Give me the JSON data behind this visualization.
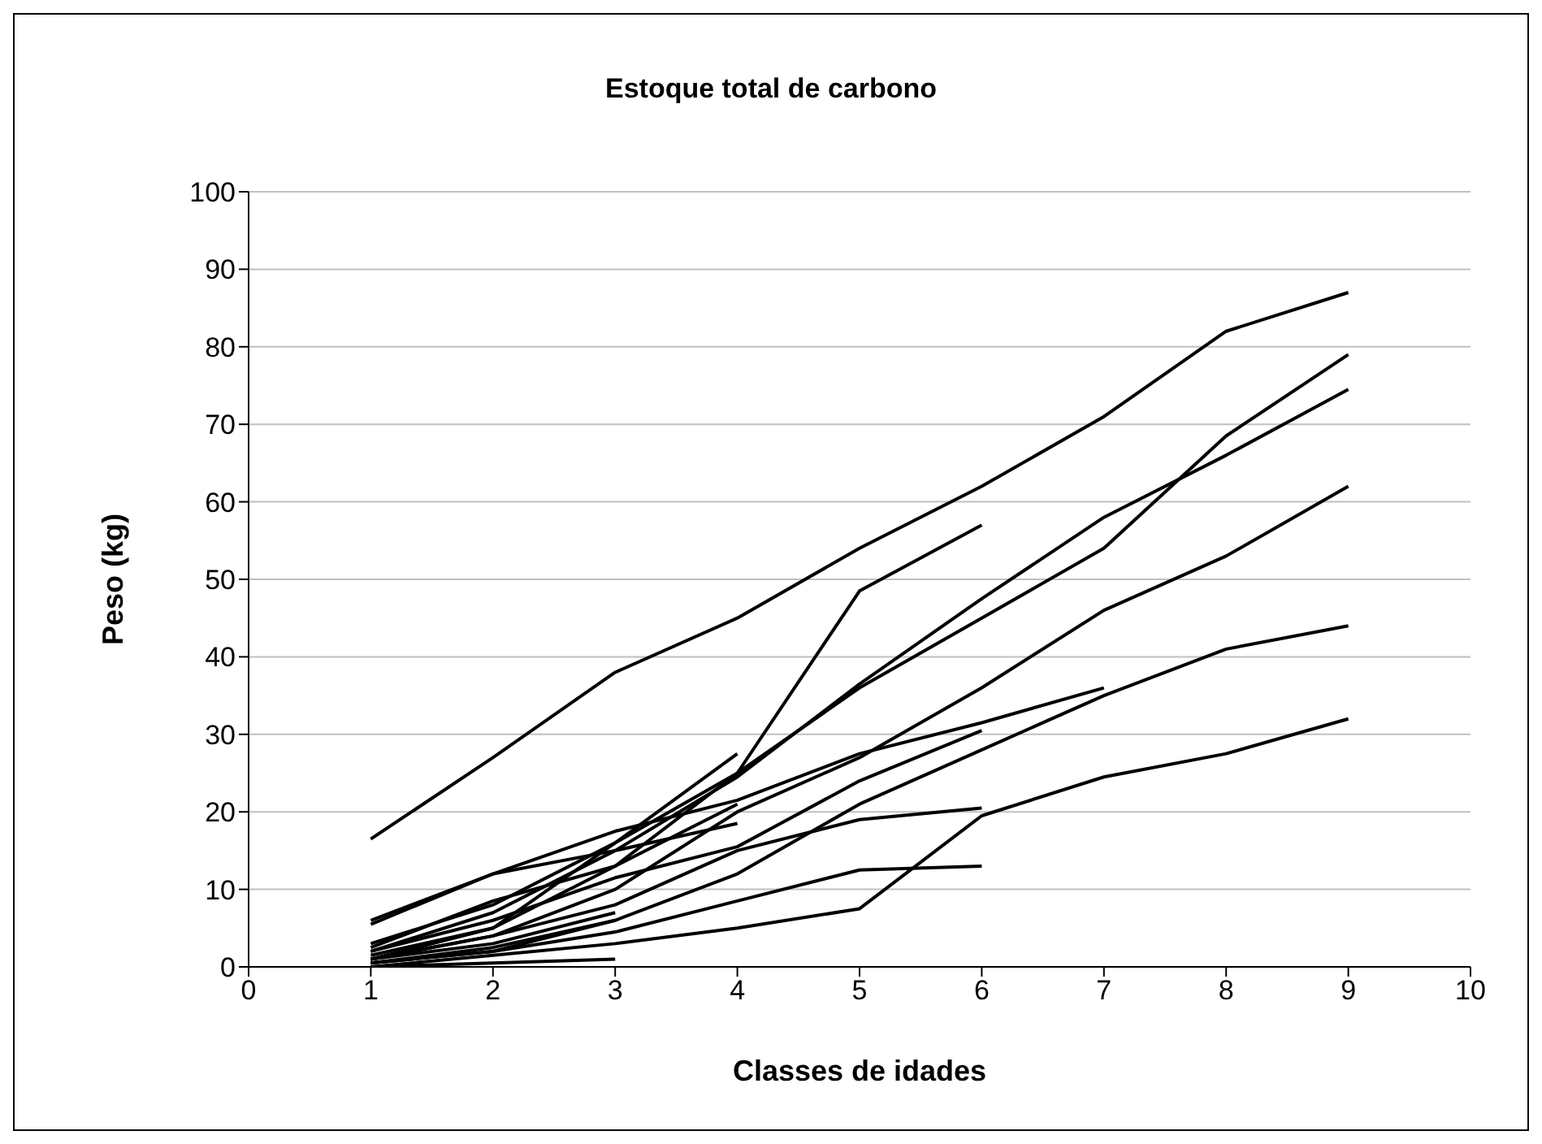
{
  "chart_data": {
    "type": "line",
    "title": "Estoque total de carbono",
    "xlabel": "Classes de idades",
    "ylabel": "Peso (kg)",
    "xlim": [
      0,
      10
    ],
    "xticks": [
      0,
      1,
      2,
      3,
      4,
      5,
      6,
      7,
      8,
      9,
      10
    ],
    "ylim": [
      0,
      100
    ],
    "yticks": [
      0,
      10,
      20,
      30,
      40,
      50,
      60,
      70,
      80,
      90,
      100
    ],
    "grid": "y",
    "marker": "none",
    "line_style": "solid",
    "series": [
      {
        "color": "#000000",
        "x": [
          1,
          2,
          3,
          4,
          5,
          6,
          7,
          8,
          9
        ],
        "values": [
          16.5,
          27,
          38,
          45,
          54,
          62,
          71,
          82,
          87
        ]
      },
      {
        "color": "#000000",
        "x": [
          1,
          2,
          3,
          4,
          5,
          6
        ],
        "values": [
          3,
          8,
          16,
          25,
          48.5,
          57
        ]
      },
      {
        "color": "#000000",
        "x": [
          1,
          2,
          3,
          4,
          5,
          6,
          7,
          8,
          9
        ],
        "values": [
          1,
          5,
          13,
          25,
          36,
          45,
          54,
          68.5,
          79
        ]
      },
      {
        "color": "#000000",
        "x": [
          1,
          2,
          3,
          4,
          5,
          6,
          7,
          8,
          9
        ],
        "values": [
          2,
          7,
          15,
          24.5,
          36.5,
          47.5,
          58,
          66,
          74.5
        ]
      },
      {
        "color": "#000000",
        "x": [
          1,
          2,
          3,
          4,
          5,
          6,
          7,
          8,
          9
        ],
        "values": [
          1,
          4,
          10,
          20,
          27,
          36,
          46,
          53,
          62
        ]
      },
      {
        "color": "#000000",
        "x": [
          1,
          2,
          3,
          4,
          5,
          6,
          7,
          8,
          9
        ],
        "values": [
          0.5,
          2,
          6,
          12,
          21,
          28,
          35,
          41,
          44
        ]
      },
      {
        "color": "#000000",
        "x": [
          1,
          2,
          3,
          4,
          5,
          6,
          7,
          8,
          9
        ],
        "values": [
          0,
          1.5,
          3,
          5,
          7.5,
          19.5,
          24.5,
          27.5,
          32
        ]
      },
      {
        "color": "#000000",
        "x": [
          1,
          2,
          3,
          4,
          5,
          6,
          7
        ],
        "values": [
          5.5,
          12,
          17.5,
          21.5,
          27.5,
          31.5,
          36
        ]
      },
      {
        "color": "#000000",
        "x": [
          1,
          2,
          3,
          4,
          5,
          6
        ],
        "values": [
          2,
          6,
          11.5,
          15.5,
          24,
          30.5
        ]
      },
      {
        "color": "#000000",
        "x": [
          1,
          2,
          3,
          4,
          5,
          6
        ],
        "values": [
          1,
          4,
          8,
          15,
          19,
          20.5
        ]
      },
      {
        "color": "#000000",
        "x": [
          1,
          2,
          3,
          4,
          5,
          6
        ],
        "values": [
          0.5,
          2,
          4.5,
          8.5,
          12.5,
          13
        ]
      },
      {
        "color": "#000000",
        "x": [
          1,
          2,
          3,
          4
        ],
        "values": [
          1.5,
          5,
          16,
          27.5
        ]
      },
      {
        "color": "#000000",
        "x": [
          1,
          2,
          3,
          4
        ],
        "values": [
          6,
          12,
          15,
          18.5
        ]
      },
      {
        "color": "#000000",
        "x": [
          1,
          2,
          3,
          4
        ],
        "values": [
          2.5,
          8.5,
          13,
          21
        ]
      },
      {
        "color": "#000000",
        "x": [
          1,
          2,
          3
        ],
        "values": [
          1,
          3,
          7
        ]
      },
      {
        "color": "#000000",
        "x": [
          1,
          2,
          3
        ],
        "values": [
          0.5,
          2.5,
          6
        ]
      },
      {
        "color": "#000000",
        "x": [
          1,
          2,
          3
        ],
        "values": [
          0,
          0.5,
          1
        ]
      }
    ]
  }
}
